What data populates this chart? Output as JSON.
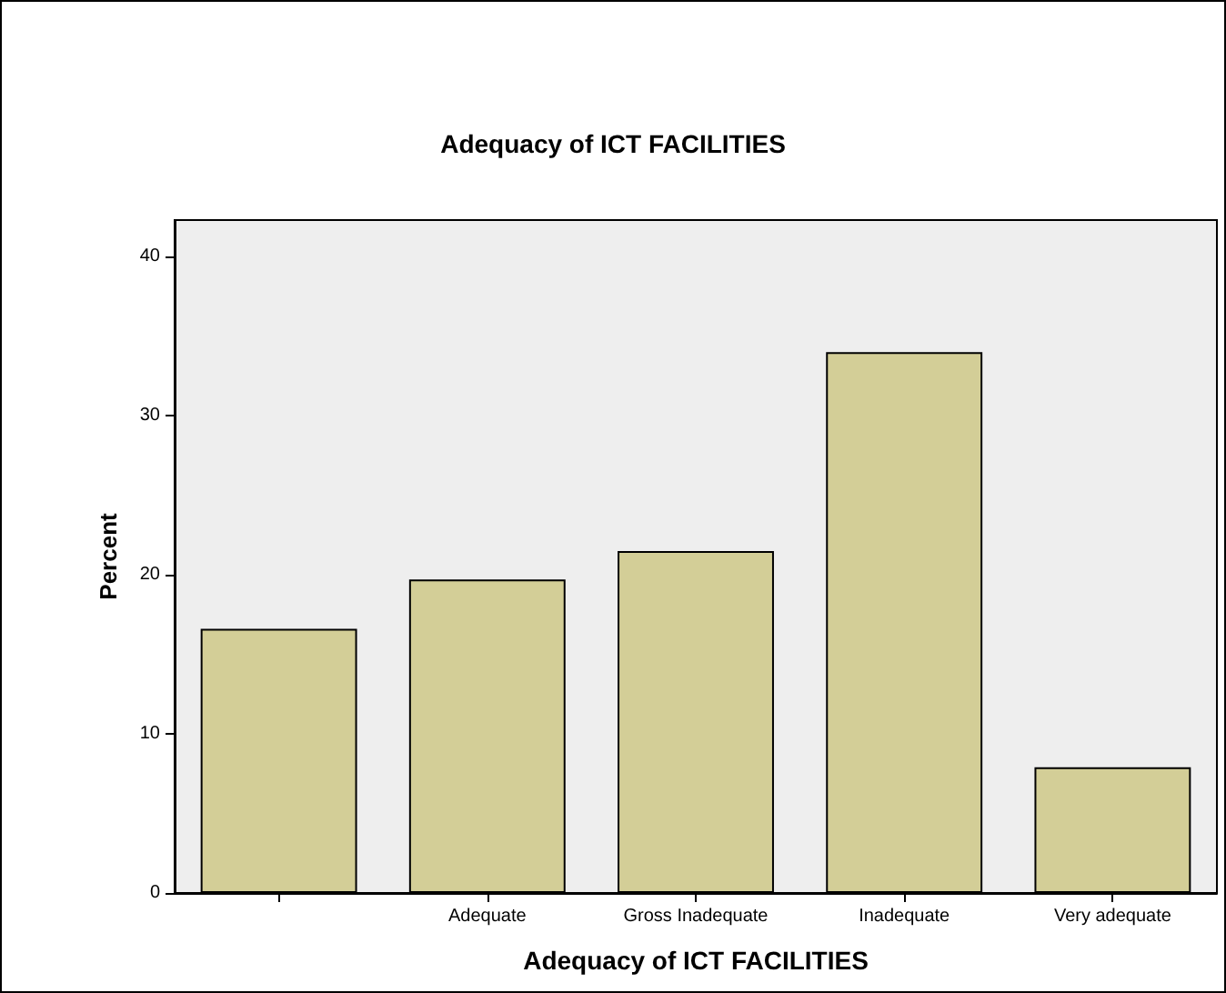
{
  "chart_data": {
    "type": "bar",
    "title": "Adequacy of ICT FACILITIES",
    "xlabel": "Adequacy of ICT FACILITIES",
    "ylabel": "Percent",
    "categories": [
      null,
      "Adequate",
      "Gross Inadequate",
      "Inadequate",
      "Very adequate"
    ],
    "values": [
      16.6,
      19.7,
      21.5,
      34.0,
      7.9
    ],
    "color": "#d3ce97",
    "ylim": [
      0,
      42.3
    ],
    "yticks": [
      0,
      10,
      20,
      30,
      40
    ],
    "grid": false
  }
}
